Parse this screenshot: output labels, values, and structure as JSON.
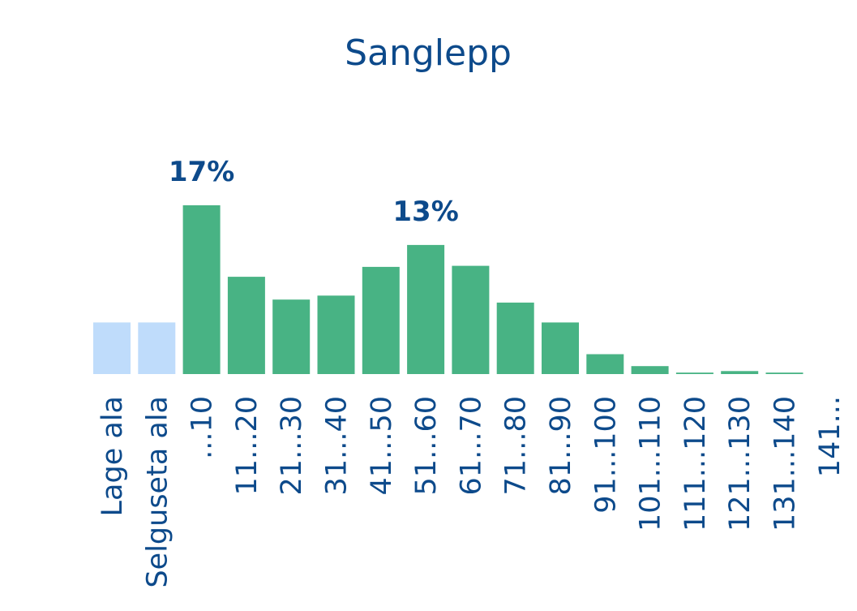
{
  "chart_data": {
    "type": "bar",
    "title": "Sanglepp",
    "categories": [
      "Lage ala",
      "Selguseta ala",
      "...10",
      "11...20",
      "21...30",
      "31...40",
      "41...50",
      "51...60",
      "61...70",
      "71...80",
      "81...90",
      "91...100",
      "101...110",
      "111...120",
      "121...130",
      "131...140",
      "141..."
    ],
    "values": [
      5.2,
      5.2,
      17,
      9.8,
      7.5,
      7.9,
      10.8,
      13,
      10.9,
      7.2,
      5.2,
      2,
      0.8,
      0.15,
      0.3,
      0.15,
      0
    ],
    "highlight_categories": [
      "Lage ala",
      "Selguseta ala"
    ],
    "data_labels": [
      {
        "category": "...10",
        "text": "17%"
      },
      {
        "category": "51...60",
        "text": "13%"
      }
    ],
    "ylim": [
      0,
      17
    ],
    "xlabel": "",
    "ylabel": "",
    "grid": false,
    "legend": "none",
    "colors": {
      "bar": "#48b384",
      "highlight_bar": "#bfdcfb",
      "text": "#0d4a8b"
    }
  }
}
